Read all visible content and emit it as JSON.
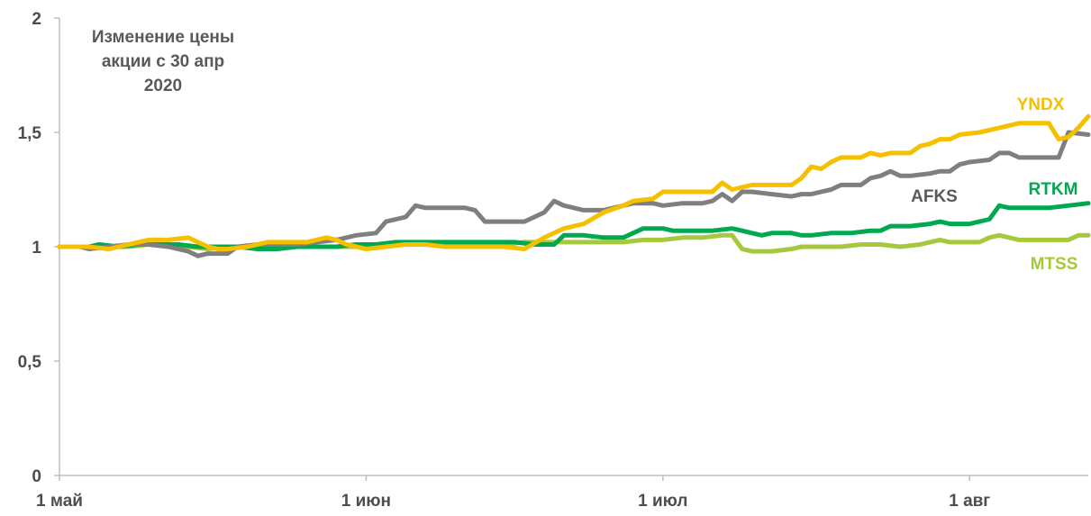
{
  "chart_data": {
    "type": "line",
    "title": "Изменение цены акции с 30 апр 2020",
    "title_lines": [
      "Изменение цены",
      "акции с 30 апр",
      "2020"
    ],
    "xlabel": "",
    "ylabel": "",
    "ylim": [
      0,
      2
    ],
    "yticks": [
      {
        "value": 0,
        "label": "0"
      },
      {
        "value": 0.5,
        "label": "0,5"
      },
      {
        "value": 1,
        "label": "1"
      },
      {
        "value": 1.5,
        "label": "1,5"
      },
      {
        "value": 2,
        "label": "2"
      }
    ],
    "xticks": [
      {
        "day": 0,
        "label": "1 май"
      },
      {
        "day": 31,
        "label": "1 июн"
      },
      {
        "day": 61,
        "label": "1 июл"
      },
      {
        "day": 92,
        "label": "1 авг"
      }
    ],
    "xlim": [
      0,
      104
    ],
    "grid": false,
    "legend": "inline labels at line ends",
    "series": [
      {
        "name": "MTSS",
        "color": "#a6c83c",
        "points": [
          [
            0,
            1
          ],
          [
            3,
            1
          ],
          [
            5,
            1.0
          ],
          [
            7,
            1
          ],
          [
            9,
            1.01
          ],
          [
            11,
            1.01
          ],
          [
            13,
            1.0
          ],
          [
            15,
            0.99
          ],
          [
            17,
            1.0
          ],
          [
            19,
            1.0
          ],
          [
            21,
            1.01
          ],
          [
            23,
            1.0
          ],
          [
            25,
            1.0
          ],
          [
            27,
            1.0
          ],
          [
            29,
            1.0
          ],
          [
            31,
            1.0
          ],
          [
            33,
            1.01
          ],
          [
            35,
            1.01
          ],
          [
            37,
            1.01
          ],
          [
            39,
            1.01
          ],
          [
            41,
            1.01
          ],
          [
            43,
            1.01
          ],
          [
            45,
            1.01
          ],
          [
            47,
            1.02
          ],
          [
            49,
            1.02
          ],
          [
            51,
            1.02
          ],
          [
            53,
            1.02
          ],
          [
            55,
            1.02
          ],
          [
            57,
            1.02
          ],
          [
            59,
            1.03
          ],
          [
            61,
            1.03
          ],
          [
            63,
            1.04
          ],
          [
            65,
            1.04
          ],
          [
            67,
            1.05
          ],
          [
            68,
            1.05
          ],
          [
            69,
            0.99
          ],
          [
            70,
            0.98
          ],
          [
            72,
            0.98
          ],
          [
            74,
            0.99
          ],
          [
            75,
            1.0
          ],
          [
            77,
            1.0
          ],
          [
            79,
            1.0
          ],
          [
            81,
            1.01
          ],
          [
            83,
            1.01
          ],
          [
            85,
            1.0
          ],
          [
            87,
            1.01
          ],
          [
            88,
            1.02
          ],
          [
            89,
            1.03
          ],
          [
            90,
            1.02
          ],
          [
            91,
            1.02
          ],
          [
            93,
            1.02
          ],
          [
            94,
            1.04
          ],
          [
            95,
            1.05
          ],
          [
            96,
            1.04
          ],
          [
            97,
            1.03
          ],
          [
            99,
            1.03
          ],
          [
            101,
            1.03
          ],
          [
            102,
            1.03
          ],
          [
            103,
            1.05
          ],
          [
            104,
            1.05
          ]
        ]
      },
      {
        "name": "RTKM",
        "color": "#00a850",
        "points": [
          [
            0,
            1
          ],
          [
            3,
            1
          ],
          [
            4,
            1.01
          ],
          [
            6,
            1.0
          ],
          [
            8,
            1.01
          ],
          [
            10,
            1.01
          ],
          [
            12,
            1.01
          ],
          [
            14,
            1.0
          ],
          [
            16,
            1.0
          ],
          [
            18,
            1.0
          ],
          [
            20,
            0.99
          ],
          [
            22,
            0.99
          ],
          [
            24,
            1.0
          ],
          [
            26,
            1.0
          ],
          [
            28,
            1.0
          ],
          [
            30,
            1.01
          ],
          [
            32,
            1.01
          ],
          [
            34,
            1.02
          ],
          [
            36,
            1.02
          ],
          [
            38,
            1.02
          ],
          [
            40,
            1.02
          ],
          [
            42,
            1.02
          ],
          [
            44,
            1.02
          ],
          [
            46,
            1.02
          ],
          [
            48,
            1.01
          ],
          [
            50,
            1.01
          ],
          [
            51,
            1.05
          ],
          [
            53,
            1.05
          ],
          [
            55,
            1.04
          ],
          [
            56,
            1.04
          ],
          [
            57,
            1.04
          ],
          [
            59,
            1.08
          ],
          [
            61,
            1.08
          ],
          [
            62,
            1.07
          ],
          [
            64,
            1.07
          ],
          [
            66,
            1.07
          ],
          [
            68,
            1.08
          ],
          [
            69,
            1.07
          ],
          [
            70,
            1.06
          ],
          [
            71,
            1.05
          ],
          [
            72,
            1.06
          ],
          [
            74,
            1.06
          ],
          [
            75,
            1.05
          ],
          [
            76,
            1.05
          ],
          [
            78,
            1.06
          ],
          [
            80,
            1.06
          ],
          [
            82,
            1.07
          ],
          [
            83,
            1.07
          ],
          [
            84,
            1.09
          ],
          [
            86,
            1.09
          ],
          [
            88,
            1.1
          ],
          [
            89,
            1.11
          ],
          [
            90,
            1.1
          ],
          [
            92,
            1.1
          ],
          [
            94,
            1.12
          ],
          [
            95,
            1.18
          ],
          [
            96,
            1.17
          ],
          [
            98,
            1.17
          ],
          [
            100,
            1.17
          ],
          [
            102,
            1.18
          ],
          [
            104,
            1.19
          ]
        ]
      },
      {
        "name": "AFKS",
        "color": "#7f7f7f",
        "points": [
          [
            0,
            1
          ],
          [
            2,
            1
          ],
          [
            3,
            0.99
          ],
          [
            5,
            1.0
          ],
          [
            7,
            1.01
          ],
          [
            9,
            1.01
          ],
          [
            11,
            1.0
          ],
          [
            13,
            0.98
          ],
          [
            14,
            0.96
          ],
          [
            15,
            0.97
          ],
          [
            17,
            0.97
          ],
          [
            18,
            1.0
          ],
          [
            20,
            1.01
          ],
          [
            22,
            1.01
          ],
          [
            24,
            1.01
          ],
          [
            26,
            1.02
          ],
          [
            28,
            1.03
          ],
          [
            30,
            1.05
          ],
          [
            32,
            1.06
          ],
          [
            33,
            1.11
          ],
          [
            35,
            1.13
          ],
          [
            36,
            1.18
          ],
          [
            37,
            1.17
          ],
          [
            39,
            1.17
          ],
          [
            41,
            1.17
          ],
          [
            42,
            1.16
          ],
          [
            43,
            1.11
          ],
          [
            45,
            1.11
          ],
          [
            47,
            1.11
          ],
          [
            49,
            1.15
          ],
          [
            50,
            1.2
          ],
          [
            51,
            1.18
          ],
          [
            53,
            1.16
          ],
          [
            55,
            1.16
          ],
          [
            57,
            1.18
          ],
          [
            58,
            1.19
          ],
          [
            60,
            1.19
          ],
          [
            61,
            1.18
          ],
          [
            63,
            1.19
          ],
          [
            65,
            1.19
          ],
          [
            66,
            1.2
          ],
          [
            67,
            1.23
          ],
          [
            68,
            1.2
          ],
          [
            69,
            1.24
          ],
          [
            70,
            1.24
          ],
          [
            72,
            1.23
          ],
          [
            74,
            1.22
          ],
          [
            75,
            1.23
          ],
          [
            76,
            1.23
          ],
          [
            77,
            1.24
          ],
          [
            78,
            1.25
          ],
          [
            79,
            1.27
          ],
          [
            81,
            1.27
          ],
          [
            82,
            1.3
          ],
          [
            83,
            1.31
          ],
          [
            84,
            1.33
          ],
          [
            85,
            1.31
          ],
          [
            86,
            1.31
          ],
          [
            88,
            1.32
          ],
          [
            89,
            1.33
          ],
          [
            90,
            1.33
          ],
          [
            91,
            1.36
          ],
          [
            92,
            1.37
          ],
          [
            94,
            1.38
          ],
          [
            95,
            1.41
          ],
          [
            96,
            1.41
          ],
          [
            97,
            1.39
          ],
          [
            99,
            1.39
          ],
          [
            101,
            1.39
          ],
          [
            102,
            1.5
          ],
          [
            104,
            1.49
          ]
        ]
      },
      {
        "name": "YNDX",
        "color": "#f5c000",
        "points": [
          [
            0,
            1
          ],
          [
            3,
            1
          ],
          [
            5,
            0.99
          ],
          [
            7,
            1.01
          ],
          [
            9,
            1.03
          ],
          [
            11,
            1.03
          ],
          [
            13,
            1.04
          ],
          [
            15,
            1.0
          ],
          [
            16,
            0.99
          ],
          [
            17,
            0.99
          ],
          [
            19,
            1.0
          ],
          [
            21,
            1.02
          ],
          [
            23,
            1.02
          ],
          [
            25,
            1.02
          ],
          [
            27,
            1.04
          ],
          [
            28,
            1.03
          ],
          [
            29,
            1.01
          ],
          [
            31,
            0.99
          ],
          [
            33,
            1.0
          ],
          [
            35,
            1.01
          ],
          [
            37,
            1.01
          ],
          [
            39,
            1.0
          ],
          [
            41,
            1.0
          ],
          [
            43,
            1.0
          ],
          [
            45,
            1.0
          ],
          [
            47,
            0.99
          ],
          [
            49,
            1.04
          ],
          [
            51,
            1.08
          ],
          [
            53,
            1.1
          ],
          [
            55,
            1.15
          ],
          [
            57,
            1.18
          ],
          [
            58,
            1.2
          ],
          [
            60,
            1.21
          ],
          [
            61,
            1.24
          ],
          [
            63,
            1.24
          ],
          [
            65,
            1.24
          ],
          [
            66,
            1.24
          ],
          [
            67,
            1.28
          ],
          [
            68,
            1.25
          ],
          [
            70,
            1.27
          ],
          [
            72,
            1.27
          ],
          [
            74,
            1.27
          ],
          [
            75,
            1.3
          ],
          [
            76,
            1.35
          ],
          [
            77,
            1.34
          ],
          [
            78,
            1.37
          ],
          [
            79,
            1.39
          ],
          [
            81,
            1.39
          ],
          [
            82,
            1.41
          ],
          [
            83,
            1.4
          ],
          [
            84,
            1.41
          ],
          [
            86,
            1.41
          ],
          [
            87,
            1.44
          ],
          [
            88,
            1.45
          ],
          [
            89,
            1.47
          ],
          [
            90,
            1.47
          ],
          [
            91,
            1.49
          ],
          [
            93,
            1.5
          ],
          [
            94,
            1.51
          ],
          [
            95,
            1.52
          ],
          [
            96,
            1.53
          ],
          [
            97,
            1.54
          ],
          [
            99,
            1.54
          ],
          [
            100,
            1.54
          ],
          [
            101,
            1.47
          ],
          [
            102,
            1.48
          ],
          [
            103,
            1.52
          ],
          [
            104,
            1.57
          ]
        ]
      }
    ]
  }
}
